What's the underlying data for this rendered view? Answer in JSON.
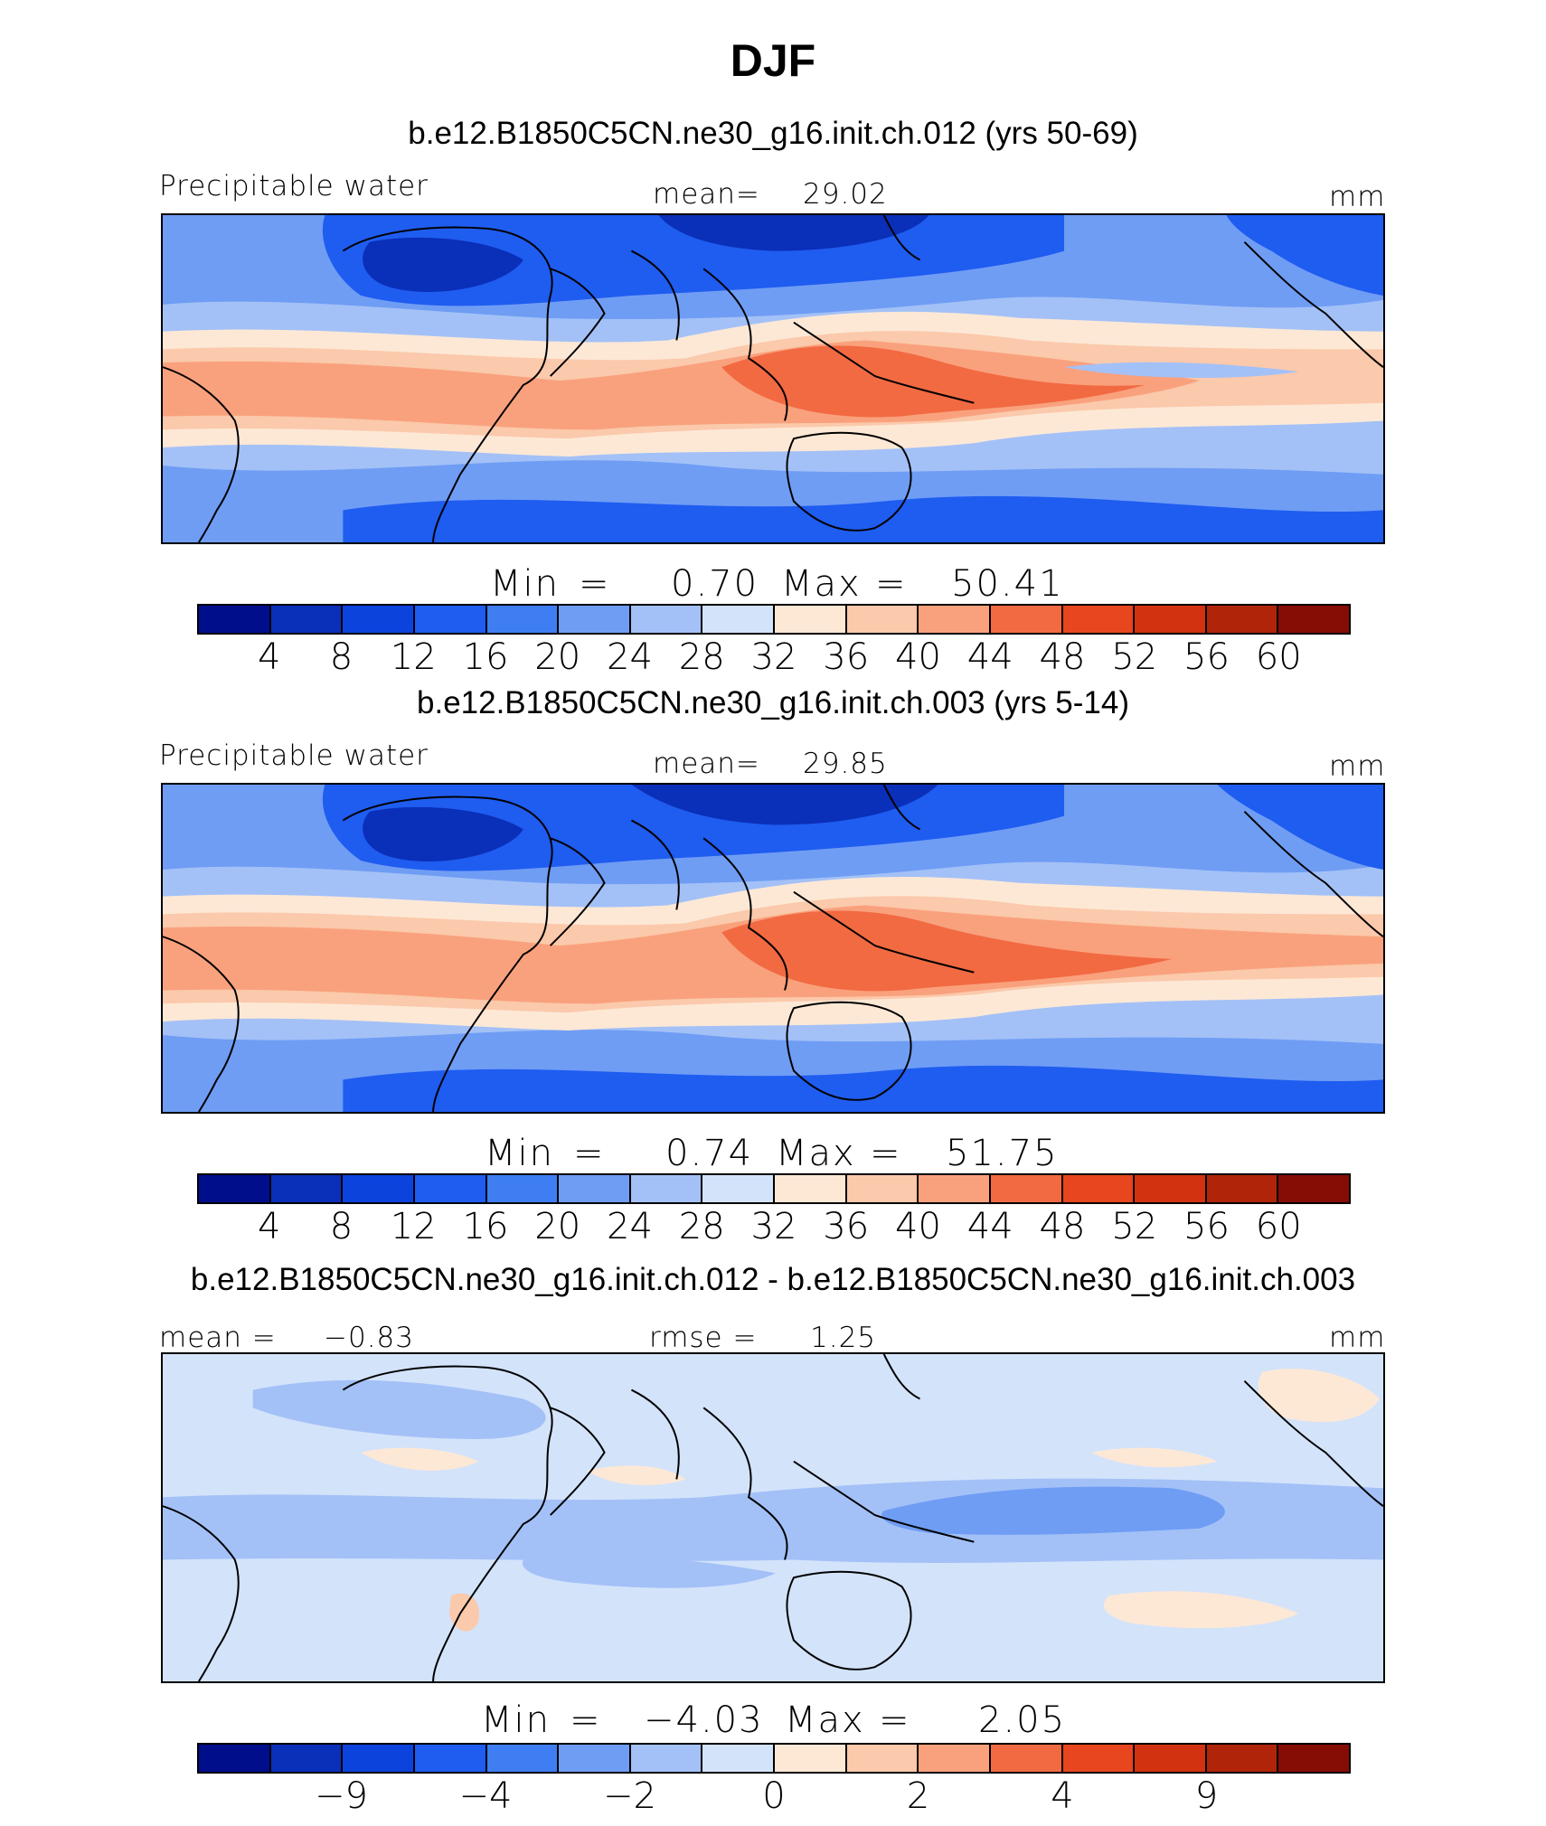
{
  "title": "DJF",
  "panels": [
    {
      "case": "b.e12.B1850C5CN.ne30_g16.init.ch.012 (yrs 50-69)",
      "left_label": "Precipitable water",
      "center_label": "mean=",
      "center_value": "29.02",
      "units": "mm",
      "min_label": "Min",
      "eq": "=",
      "min_value": "0.70",
      "max_label": "Max",
      "max_value": "50.41",
      "ticks": [
        "4",
        "8",
        "12",
        "16",
        "20",
        "24",
        "28",
        "32",
        "36",
        "40",
        "44",
        "48",
        "52",
        "56",
        "60"
      ]
    },
    {
      "case": "b.e12.B1850C5CN.ne30_g16.init.ch.003 (yrs 5-14)",
      "left_label": "Precipitable water",
      "center_label": "mean=",
      "center_value": "29.85",
      "units": "mm",
      "min_label": "Min",
      "eq": "=",
      "min_value": "0.74",
      "max_label": "Max",
      "max_value": "51.75",
      "ticks": [
        "4",
        "8",
        "12",
        "16",
        "20",
        "24",
        "28",
        "32",
        "36",
        "40",
        "44",
        "48",
        "52",
        "56",
        "60"
      ]
    },
    {
      "case": "b.e12.B1850C5CN.ne30_g16.init.ch.012 - b.e12.B1850C5CN.ne30_g16.init.ch.003",
      "left_label": "mean =",
      "left_value": "−0.83",
      "center_label": "rmse =",
      "center_value": "1.25",
      "units": "mm",
      "min_label": "Min",
      "eq": "=",
      "min_value": "−4.03",
      "max_label": "Max",
      "max_value": "2.05",
      "ticks": [
        "−9",
        "−4",
        "−2",
        "0",
        "2",
        "4",
        "9"
      ]
    }
  ],
  "colorbar_colors": [
    "#000e8c",
    "#0a2fb8",
    "#0c43dc",
    "#1f5cf0",
    "#3f7ef2",
    "#6f9df4",
    "#a3c1f7",
    "#d3e3fa",
    "#fde8d6",
    "#fbc9ab",
    "#f9a17d",
    "#f26a42",
    "#e7461e",
    "#d2320f",
    "#b02509",
    "#860c06"
  ],
  "map_colors": {
    "dry_deep": "#0a2fb8",
    "dry": "#1f5cf0",
    "mid_blue": "#6f9df4",
    "light_blue": "#a3c1f7",
    "pale_blue": "#d3e3fa",
    "pale_orange": "#fde8d6",
    "light_orange": "#fbc9ab",
    "orange": "#f9a17d",
    "red_orange": "#f26a42"
  }
}
